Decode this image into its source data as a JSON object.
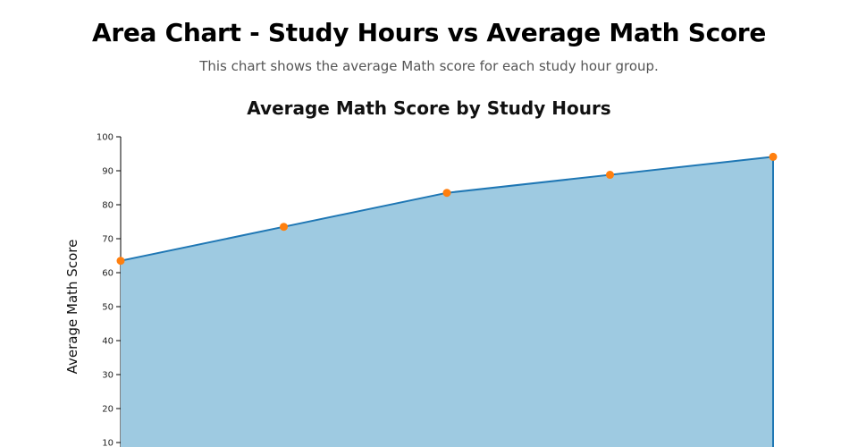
{
  "header": {
    "title": "Area Chart - Study Hours vs Average Math Score",
    "subtitle": "This chart shows the average Math score for each study hour group."
  },
  "chart_data": {
    "type": "area",
    "title": "Average Math Score by Study Hours",
    "xlabel": "",
    "ylabel": "Average Math Score",
    "ylim": [
      0,
      100
    ],
    "yticks": [
      10,
      20,
      30,
      40,
      50,
      60,
      70,
      80,
      90,
      100
    ],
    "series": [
      {
        "values": [
          63.5,
          73.5,
          83.5,
          88.8,
          94.1
        ]
      }
    ],
    "grid": false,
    "legend": "none",
    "colors": {
      "fill": "#9ecae1",
      "line": "#1f77b4",
      "marker": "#ff7f0e"
    }
  }
}
